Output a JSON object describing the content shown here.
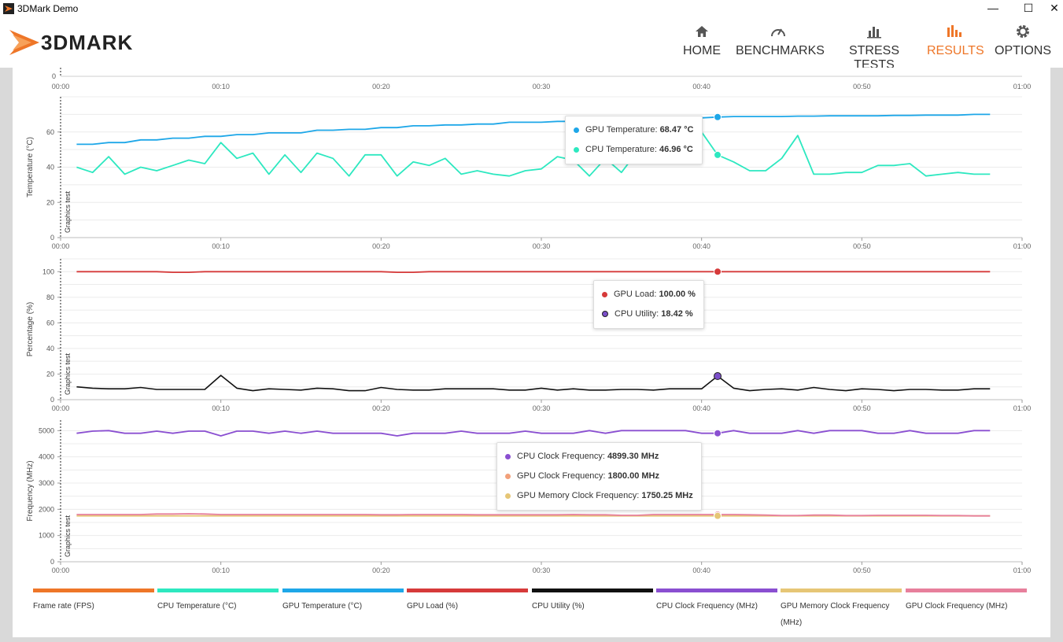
{
  "window": {
    "title": "3DMark Demo",
    "minimize": "—",
    "maximize": "☐",
    "close": "✕"
  },
  "brand": {
    "logo_text": "3DMARK",
    "accent": "#ee7628"
  },
  "nav": [
    {
      "label": "HOME",
      "icon": "home-icon",
      "active": false
    },
    {
      "label": "BENCHMARKS",
      "icon": "gauge-icon",
      "active": false
    },
    {
      "label": "STRESS TESTS",
      "icon": "bar-chart-icon",
      "active": false
    },
    {
      "label": "RESULTS",
      "icon": "results-icon",
      "active": true
    },
    {
      "label": "OPTIONS",
      "icon": "gear-icon",
      "active": false
    }
  ],
  "chart_data": [
    {
      "type": "line",
      "ylabel": "Temperature (°C)",
      "section_label": "Graphics test",
      "ylim": [
        0,
        80
      ],
      "yticks": [
        0,
        20,
        40,
        60
      ],
      "x_ticks": [
        "00:00",
        "00:10",
        "00:20",
        "00:30",
        "00:40",
        "00:50",
        "01:00"
      ],
      "x_unit": "seconds",
      "x": [
        1,
        2,
        3,
        4,
        5,
        6,
        7,
        8,
        9,
        10,
        11,
        12,
        13,
        14,
        15,
        16,
        17,
        18,
        19,
        20,
        21,
        22,
        23,
        24,
        25,
        26,
        27,
        28,
        29,
        30,
        31,
        32,
        33,
        34,
        35,
        36,
        37,
        38,
        39,
        40,
        41,
        42,
        43,
        44,
        45,
        46,
        47,
        48,
        49,
        50,
        51,
        52,
        53,
        54,
        55,
        56,
        57,
        58
      ],
      "series": [
        {
          "name": "GPU Temperature",
          "color": "#1ea7e8",
          "values": [
            53,
            53,
            54,
            54,
            55.5,
            55.5,
            56.5,
            56.5,
            57.5,
            57.5,
            58.5,
            58.5,
            59.5,
            59.5,
            59.5,
            61,
            61,
            61.5,
            61.5,
            62.5,
            62.5,
            63.5,
            63.5,
            64,
            64,
            64.5,
            64.5,
            65.5,
            65.5,
            65.5,
            66,
            66,
            66.5,
            66.5,
            67,
            67,
            67.5,
            67.5,
            68,
            68,
            68.47,
            68.8,
            68.8,
            68.8,
            68.8,
            69,
            69,
            69.2,
            69.2,
            69.2,
            69.2,
            69.4,
            69.4,
            69.6,
            69.6,
            69.6,
            70,
            70
          ]
        },
        {
          "name": "CPU Temperature",
          "color": "#2de8c0",
          "values": [
            40,
            37,
            46,
            36,
            40,
            38,
            41,
            44,
            42,
            54,
            45,
            48,
            36,
            47,
            37,
            48,
            45,
            35,
            47,
            47,
            35,
            43,
            41,
            45,
            36,
            38,
            36,
            35,
            38,
            39,
            46,
            44,
            35,
            45,
            37,
            49,
            50,
            52,
            62,
            60,
            46.96,
            43,
            38,
            38,
            45,
            58,
            36,
            36,
            37,
            37,
            41,
            41,
            42,
            35,
            36,
            37,
            36,
            36
          ]
        }
      ]
    },
    {
      "type": "line",
      "ylabel": "Percentage (%)",
      "section_label": "Graphics test",
      "ylim": [
        0,
        110
      ],
      "yticks": [
        0,
        20,
        40,
        60,
        80,
        100
      ],
      "x_ticks": [
        "00:00",
        "00:10",
        "00:20",
        "00:30",
        "00:40",
        "00:50",
        "01:00"
      ],
      "x_unit": "seconds",
      "x": [
        1,
        2,
        3,
        4,
        5,
        6,
        7,
        8,
        9,
        10,
        11,
        12,
        13,
        14,
        15,
        16,
        17,
        18,
        19,
        20,
        21,
        22,
        23,
        24,
        25,
        26,
        27,
        28,
        29,
        30,
        31,
        32,
        33,
        34,
        35,
        36,
        37,
        38,
        39,
        40,
        41,
        42,
        43,
        44,
        45,
        46,
        47,
        48,
        49,
        50,
        51,
        52,
        53,
        54,
        55,
        56,
        57,
        58
      ],
      "series": [
        {
          "name": "GPU Load",
          "color": "#d63a3a",
          "values": [
            100,
            100,
            100,
            100,
            100,
            100,
            99.5,
            99.5,
            100,
            100,
            100,
            100,
            100,
            100,
            100,
            100,
            100,
            100,
            100,
            100,
            99.5,
            99.5,
            100,
            100,
            100,
            100,
            100,
            100,
            100,
            100,
            100,
            100,
            100,
            100,
            100,
            100,
            100,
            100,
            100,
            100,
            100,
            100,
            100,
            100,
            100,
            100,
            100,
            100,
            100,
            100,
            100,
            100,
            100,
            100,
            100,
            100,
            100,
            100
          ]
        },
        {
          "name": "CPU Utility",
          "color": "#111111",
          "marker_color": "#7b4fc9",
          "values": [
            10,
            9,
            8.5,
            8.5,
            9.5,
            8,
            8,
            8,
            8,
            19,
            9,
            7,
            8.5,
            8,
            7.5,
            9,
            8.5,
            7,
            7,
            9.5,
            8,
            7.5,
            7.5,
            8.5,
            8.5,
            8.5,
            8.5,
            7.5,
            7.5,
            9,
            7.5,
            8.5,
            7.5,
            7.5,
            8,
            8,
            7.5,
            8.5,
            8.5,
            8.5,
            18.42,
            9,
            7,
            8,
            8.5,
            7.5,
            9.5,
            8,
            7,
            8.5,
            8,
            7,
            8,
            8,
            7.5,
            7.5,
            8.5,
            8.5
          ]
        }
      ]
    },
    {
      "type": "line",
      "ylabel": "Frequency (MHz)",
      "section_label": "Graphics test",
      "ylim": [
        0,
        5400
      ],
      "yticks": [
        0,
        1000,
        2000,
        3000,
        4000,
        5000
      ],
      "x_ticks": [
        "00:00",
        "00:10",
        "00:20",
        "00:30",
        "00:40",
        "00:50",
        "01:00"
      ],
      "x_unit": "seconds",
      "x": [
        1,
        2,
        3,
        4,
        5,
        6,
        7,
        8,
        9,
        10,
        11,
        12,
        13,
        14,
        15,
        16,
        17,
        18,
        19,
        20,
        21,
        22,
        23,
        24,
        25,
        26,
        27,
        28,
        29,
        30,
        31,
        32,
        33,
        34,
        35,
        36,
        37,
        38,
        39,
        40,
        41,
        42,
        43,
        44,
        45,
        46,
        47,
        48,
        49,
        50,
        51,
        52,
        53,
        54,
        55,
        56,
        57,
        58
      ],
      "series": [
        {
          "name": "CPU Clock Frequency",
          "color": "#8a4fd1",
          "values": [
            4900,
            4980,
            5000,
            4900,
            4900,
            4980,
            4900,
            4980,
            4980,
            4800,
            4980,
            4980,
            4900,
            4980,
            4900,
            4980,
            4900,
            4900,
            4900,
            4900,
            4800,
            4900,
            4900,
            4900,
            4980,
            4900,
            4900,
            4900,
            4980,
            4900,
            4900,
            4900,
            5000,
            4900,
            5000,
            5000,
            5000,
            5000,
            5000,
            4900,
            4899.3,
            5000,
            4900,
            4900,
            4900,
            5000,
            4900,
            5000,
            5000,
            5000,
            4900,
            4900,
            5000,
            4900,
            4900,
            4900,
            5000,
            5000
          ]
        },
        {
          "name": "GPU Clock Frequency",
          "color": "#e77f9c",
          "values": [
            1800,
            1800,
            1800,
            1800,
            1800,
            1820,
            1820,
            1830,
            1820,
            1800,
            1800,
            1800,
            1800,
            1800,
            1800,
            1800,
            1800,
            1800,
            1800,
            1790,
            1790,
            1800,
            1800,
            1800,
            1800,
            1790,
            1790,
            1790,
            1790,
            1790,
            1790,
            1800,
            1790,
            1790,
            1770,
            1770,
            1800,
            1800,
            1800,
            1800,
            1800,
            1800,
            1790,
            1780,
            1760,
            1760,
            1780,
            1780,
            1760,
            1760,
            1770,
            1770,
            1770,
            1770,
            1760,
            1760,
            1750,
            1750
          ]
        },
        {
          "name": "GPU Memory Clock Frequency",
          "color": "#e6c676",
          "values": [
            1750.25,
            1750.25,
            1750.25,
            1750.25,
            1750.25,
            1750.25,
            1750.25,
            1750.25,
            1750.25,
            1750.25,
            1750.25,
            1750.25,
            1750.25,
            1750.25,
            1750.25,
            1750.25,
            1750.25,
            1750.25,
            1750.25,
            1750.25,
            1750.25,
            1750.25,
            1750.25,
            1750.25,
            1750.25,
            1750.25,
            1750.25,
            1750.25,
            1750.25,
            1750.25,
            1750.25,
            1750.25,
            1750.25,
            1750.25,
            1750.25,
            1750.25,
            1750.25,
            1750.25,
            1750.25,
            1750.25,
            1750.25,
            1750.25,
            1750.25,
            1750.25,
            1750.25,
            1750.25,
            1750.25,
            1750.25,
            1750.25,
            1750.25,
            1750.25,
            1750.25,
            1750.25,
            1750.25,
            1750.25,
            1750.25,
            1750.25,
            1750.25
          ]
        }
      ]
    }
  ],
  "cursor_x": 41,
  "tooltips": [
    {
      "rows": [
        {
          "label": "GPU Temperature: ",
          "value": "68.47 °C",
          "color": "#1ea7e8"
        },
        {
          "label": "CPU Temperature: ",
          "value": "46.96 °C",
          "color": "#2de8c0"
        }
      ]
    },
    {
      "rows": [
        {
          "label": "GPU Load: ",
          "value": "100.00 %",
          "color": "#d63a3a"
        },
        {
          "label": "CPU Utility: ",
          "value": "18.42 %",
          "color": "#7b4fc9"
        }
      ]
    },
    {
      "rows": [
        {
          "label": "CPU Clock Frequency: ",
          "value": "4899.30 MHz",
          "color": "#8a4fd1"
        },
        {
          "label": "GPU Clock Frequency: ",
          "value": "1800.00 MHz",
          "color": "#f2a07a"
        },
        {
          "label": "GPU Memory Clock Frequency: ",
          "value": "1750.25 MHz",
          "color": "#e6c676"
        }
      ]
    }
  ],
  "legend": [
    {
      "label": "Frame rate (FPS)",
      "color": "#ee7628"
    },
    {
      "label": "CPU Temperature (°C)",
      "color": "#2de8c0"
    },
    {
      "label": "GPU Temperature (°C)",
      "color": "#1ea7e8"
    },
    {
      "label": "GPU Load (%)",
      "color": "#d63a3a"
    },
    {
      "label": "CPU Utility (%)",
      "color": "#111111"
    },
    {
      "label": "CPU Clock Frequency (MHz)",
      "color": "#8a4fd1"
    },
    {
      "label": "GPU Memory Clock Frequency (MHz)",
      "color": "#e6c676"
    },
    {
      "label": "GPU Clock Frequency (MHz)",
      "color": "#e77f9c"
    }
  ]
}
